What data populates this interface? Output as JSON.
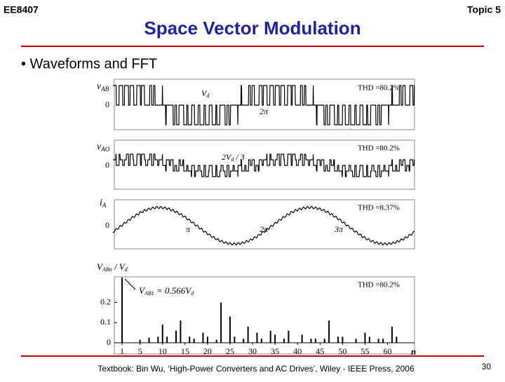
{
  "header": {
    "course": "EE8407",
    "topic": "Topic 5",
    "title": "Space Vector Modulation"
  },
  "bullet": "• Waveforms and FFT",
  "figure": {
    "vab": {
      "symbol": "v",
      "sub": "AB",
      "zero": "0",
      "vd": "V",
      "vd_sub": "d",
      "two_pi": "2π",
      "thd": "THD =80.2%"
    },
    "vao": {
      "symbol": "v",
      "sub": "AO",
      "zero": "0",
      "amp": "2V",
      "amp_sub": "d",
      "amp_tail": " / 3",
      "thd": "THD =80.2%"
    },
    "ia": {
      "symbol": "i",
      "sub": "A",
      "zero": "0",
      "pi": "π",
      "two_pi": "2π",
      "three_pi": "3π",
      "thd": "THD =8.37%"
    },
    "spectrum": {
      "ylabel": "V",
      "ylabel_sub": "ABn",
      "ylabel_tail": " / V",
      "ylabel_tail_sub": "d",
      "fund_label": "V",
      "fund_sub": "AB1",
      "fund_tail": " = 0.566V",
      "fund_tail_sub": "d",
      "thd": "THD =80.2%",
      "xlabel": "n",
      "ylim": [
        0,
        0.32
      ],
      "yticks": [
        0,
        0.1,
        0.2
      ],
      "xlim": [
        1,
        66
      ],
      "xticks": [
        1,
        5,
        10,
        15,
        20,
        25,
        30,
        35,
        40,
        45,
        50,
        55,
        60
      ],
      "harmonics": [
        1,
        5,
        7,
        9,
        10,
        11,
        13,
        14,
        16,
        17,
        19,
        20,
        22,
        23,
        25,
        26,
        28,
        29,
        31,
        32,
        34,
        35,
        37,
        38,
        41,
        43,
        44,
        46,
        47,
        49,
        50,
        53,
        55,
        56,
        58,
        59,
        61,
        62
      ],
      "values": [
        0.566,
        0.015,
        0.025,
        0.03,
        0.09,
        0.03,
        0.06,
        0.11,
        0.03,
        0.02,
        0.05,
        0.03,
        0.015,
        0.2,
        0.13,
        0.03,
        0.02,
        0.08,
        0.05,
        0.02,
        0.06,
        0.04,
        0.02,
        0.06,
        0.04,
        0.02,
        0.02,
        0.02,
        0.11,
        0.03,
        0.03,
        0.02,
        0.05,
        0.03,
        0.02,
        0.02,
        0.08,
        0.03
      ]
    }
  },
  "footer": {
    "source": "Textbook: Bin Wu, ‘High-Power Converters and AC Drives’, Wiley - IEEE Press, 2006",
    "page": "30"
  }
}
